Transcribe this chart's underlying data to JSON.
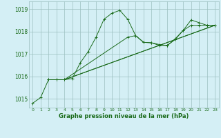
{
  "title": "Graphe pression niveau de la mer (hPa)",
  "background_color": "#d4eff5",
  "grid_color": "#9bbfbf",
  "line_color": "#1a6b1a",
  "xlim": [
    -0.5,
    23.5
  ],
  "ylim": [
    1014.6,
    1019.35
  ],
  "yticks": [
    1015,
    1016,
    1017,
    1018,
    1019
  ],
  "xticks": [
    0,
    1,
    2,
    3,
    4,
    5,
    6,
    7,
    8,
    9,
    10,
    11,
    12,
    13,
    14,
    15,
    16,
    17,
    18,
    19,
    20,
    21,
    22,
    23
  ],
  "series1_x": [
    0,
    1,
    2,
    3,
    4,
    5,
    6,
    7,
    8,
    9,
    10,
    11,
    12,
    13,
    14,
    15,
    16,
    17,
    18,
    19,
    20,
    21,
    22,
    23
  ],
  "series1_y": [
    1014.8,
    1015.05,
    1015.85,
    1015.85,
    1015.85,
    1015.9,
    1016.6,
    1017.1,
    1017.75,
    1018.55,
    1018.82,
    1018.95,
    1018.55,
    1017.82,
    1017.52,
    1017.5,
    1017.42,
    1017.38,
    1017.68,
    1018.05,
    1018.52,
    1018.4,
    1018.28,
    1018.28
  ],
  "series2_x": [
    2,
    3,
    4,
    12,
    13,
    14,
    15,
    16,
    17,
    18,
    19,
    20,
    21,
    22,
    23
  ],
  "series2_y": [
    1015.85,
    1015.85,
    1015.85,
    1017.75,
    1017.82,
    1017.52,
    1017.5,
    1017.38,
    1017.38,
    1017.65,
    1018.05,
    1018.28,
    1018.28,
    1018.28,
    1018.28
  ],
  "series3_x": [
    3,
    4,
    23
  ],
  "series3_y": [
    1015.85,
    1015.85,
    1018.28
  ],
  "series4_x": [
    4,
    23
  ],
  "series4_y": [
    1015.85,
    1018.28
  ]
}
